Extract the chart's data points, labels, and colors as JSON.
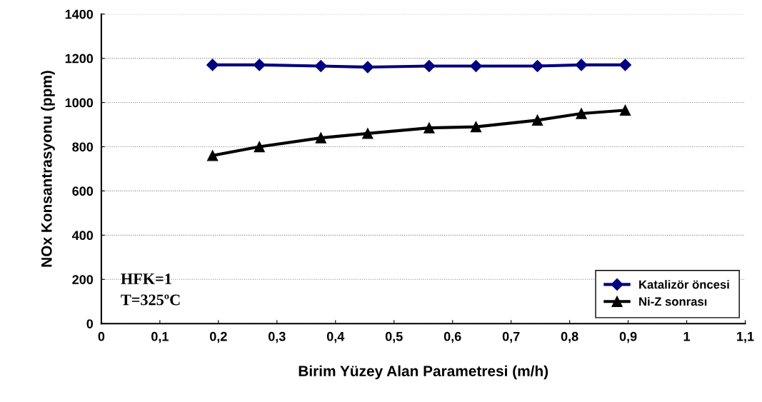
{
  "chart_data": {
    "type": "line",
    "xlabel": "Birim Yüzey Alan Parametresi (m/h)",
    "ylabel": "NOx Konsantrasyonu (ppm)",
    "x": [
      0.19,
      0.27,
      0.375,
      0.455,
      0.56,
      0.64,
      0.745,
      0.82,
      0.895
    ],
    "series": [
      {
        "name": "Katalizör öncesi",
        "color": "#000080",
        "marker": "diamond",
        "values": [
          1170,
          1170,
          1165,
          1160,
          1165,
          1165,
          1165,
          1170,
          1170
        ]
      },
      {
        "name": "Ni-Z sonrası",
        "color": "#000000",
        "marker": "triangle",
        "values": [
          760,
          800,
          840,
          860,
          885,
          890,
          920,
          950,
          965
        ]
      }
    ],
    "xlim": [
      0,
      1.1
    ],
    "xticks": [
      {
        "value": 0,
        "label": "0"
      },
      {
        "value": 0.1,
        "label": "0,1"
      },
      {
        "value": 0.2,
        "label": "0,2"
      },
      {
        "value": 0.3,
        "label": "0,3"
      },
      {
        "value": 0.4,
        "label": "0,4"
      },
      {
        "value": 0.5,
        "label": "0,5"
      },
      {
        "value": 0.6,
        "label": "0,6"
      },
      {
        "value": 0.7,
        "label": "0,7"
      },
      {
        "value": 0.8,
        "label": "0,8"
      },
      {
        "value": 0.9,
        "label": "0,9"
      },
      {
        "value": 1,
        "label": "1"
      },
      {
        "value": 1.1,
        "label": "1,1"
      }
    ],
    "ylim": [
      0,
      1400
    ],
    "yticks": [
      0,
      200,
      400,
      600,
      800,
      1000,
      1200,
      1400
    ],
    "grid": "y",
    "legend": "bottom right",
    "line_style": "solid",
    "annotations": [
      "HFK=1\nT=325ºC"
    ]
  }
}
